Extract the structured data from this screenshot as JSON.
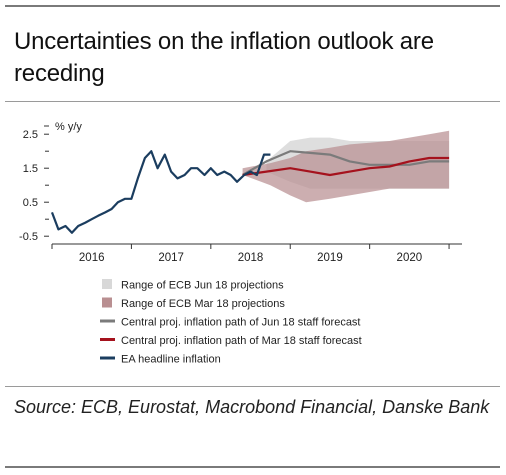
{
  "title": "Uncertainties on the inflation outlook are receding",
  "source": "Source: ECB, Eurostat, Macrobond Financial, Danske Bank",
  "colors": {
    "jun_range": "#d8d8d8",
    "mar_range": "#b98f91",
    "jun_central": "#7b7b7b",
    "mar_central": "#a5121d",
    "headline": "#1b3d5f",
    "axis": "#333333"
  },
  "chart_data": {
    "type": "line",
    "ylabel": "% y/y",
    "ylim": [
      -0.7,
      2.8
    ],
    "xlim": [
      2015.5,
      2020.6
    ],
    "yticks": [
      {
        "value": 2.5,
        "label": "2.5"
      },
      {
        "value": 1.5,
        "label": "1.5"
      },
      {
        "value": 0.5,
        "label": "0.5"
      },
      {
        "value": -0.5,
        "label": "-0.5"
      }
    ],
    "ytick_minor": [
      2.0,
      1.0,
      0.0
    ],
    "xticks": [
      {
        "value": 2016.0,
        "label": "2016"
      },
      {
        "value": 2017.0,
        "label": "2017"
      },
      {
        "value": 2018.0,
        "label": "2018"
      },
      {
        "value": 2019.0,
        "label": "2019"
      },
      {
        "value": 2020.0,
        "label": "2020"
      }
    ],
    "x_boundaries": [
      2015.5,
      2016.5,
      2017.5,
      2018.5,
      2019.5,
      2020.5
    ],
    "legend_position": "bottom",
    "legend": [
      {
        "label": "Range of ECB Jun 18 projections",
        "kind": "box",
        "color": "#d8d8d8"
      },
      {
        "label": "Range of ECB Mar 18 projections",
        "kind": "box",
        "color": "#b98f91"
      },
      {
        "label": "Central proj. inflation path of Jun 18 staff forecast",
        "kind": "line",
        "color": "#7b7b7b"
      },
      {
        "label": "Central proj. inflation path of Mar 18 staff forecast",
        "kind": "line",
        "color": "#a5121d"
      },
      {
        "label": "EA headline inflation",
        "kind": "line",
        "color": "#1b3d5f"
      }
    ],
    "series": [
      {
        "name": "Range of ECB Jun 18 projections",
        "kind": "band",
        "x": [
          2018.2,
          2018.5,
          2018.75,
          2019.0,
          2019.25,
          2019.5,
          2019.75,
          2020.0,
          2020.25,
          2020.5
        ],
        "lower": [
          1.4,
          1.1,
          0.9,
          0.9,
          0.9,
          0.9,
          0.9,
          0.9,
          0.9,
          0.9
        ],
        "upper": [
          1.7,
          2.3,
          2.4,
          2.4,
          2.3,
          2.3,
          2.3,
          2.3,
          2.3,
          2.3
        ]
      },
      {
        "name": "Range of ECB Mar 18 projections",
        "kind": "band",
        "x": [
          2017.9,
          2018.25,
          2018.5,
          2018.7,
          2019.0,
          2019.25,
          2019.5,
          2019.75,
          2020.0,
          2020.25,
          2020.5
        ],
        "lower": [
          1.3,
          1.0,
          0.7,
          0.5,
          0.6,
          0.7,
          0.8,
          0.9,
          0.9,
          0.9,
          0.9
        ],
        "upper": [
          1.5,
          1.65,
          1.8,
          2.0,
          2.1,
          2.2,
          2.25,
          2.3,
          2.4,
          2.5,
          2.6
        ]
      },
      {
        "name": "Central proj. inflation path of Jun 18 staff forecast",
        "kind": "line",
        "x": [
          2017.9,
          2018.2,
          2018.5,
          2018.75,
          2019.0,
          2019.25,
          2019.5,
          2019.75,
          2020.0,
          2020.25,
          2020.5
        ],
        "y": [
          1.3,
          1.7,
          2.0,
          1.95,
          1.9,
          1.7,
          1.6,
          1.6,
          1.6,
          1.7,
          1.7
        ]
      },
      {
        "name": "Central proj. inflation path of Mar 18 staff forecast",
        "kind": "line",
        "x": [
          2017.9,
          2018.2,
          2018.5,
          2018.75,
          2019.0,
          2019.25,
          2019.5,
          2019.75,
          2020.0,
          2020.25,
          2020.5
        ],
        "y": [
          1.3,
          1.4,
          1.5,
          1.4,
          1.3,
          1.4,
          1.5,
          1.55,
          1.7,
          1.8,
          1.8
        ]
      },
      {
        "name": "EA headline inflation",
        "kind": "line",
        "x": [
          2015.5,
          2015.58,
          2015.67,
          2015.75,
          2015.83,
          2015.92,
          2016.0,
          2016.08,
          2016.17,
          2016.25,
          2016.33,
          2016.42,
          2016.5,
          2016.58,
          2016.67,
          2016.75,
          2016.83,
          2016.92,
          2017.0,
          2017.08,
          2017.17,
          2017.25,
          2017.33,
          2017.42,
          2017.5,
          2017.58,
          2017.67,
          2017.75,
          2017.83,
          2017.92,
          2018.0,
          2018.08,
          2018.17,
          2018.25
        ],
        "y": [
          0.2,
          -0.3,
          -0.2,
          -0.4,
          -0.2,
          -0.1,
          0.0,
          0.1,
          0.2,
          0.3,
          0.5,
          0.6,
          0.6,
          1.2,
          1.8,
          2.0,
          1.5,
          1.9,
          1.4,
          1.2,
          1.3,
          1.5,
          1.5,
          1.3,
          1.5,
          1.3,
          1.4,
          1.3,
          1.1,
          1.3,
          1.4,
          1.3,
          1.9,
          1.9
        ]
      }
    ]
  }
}
